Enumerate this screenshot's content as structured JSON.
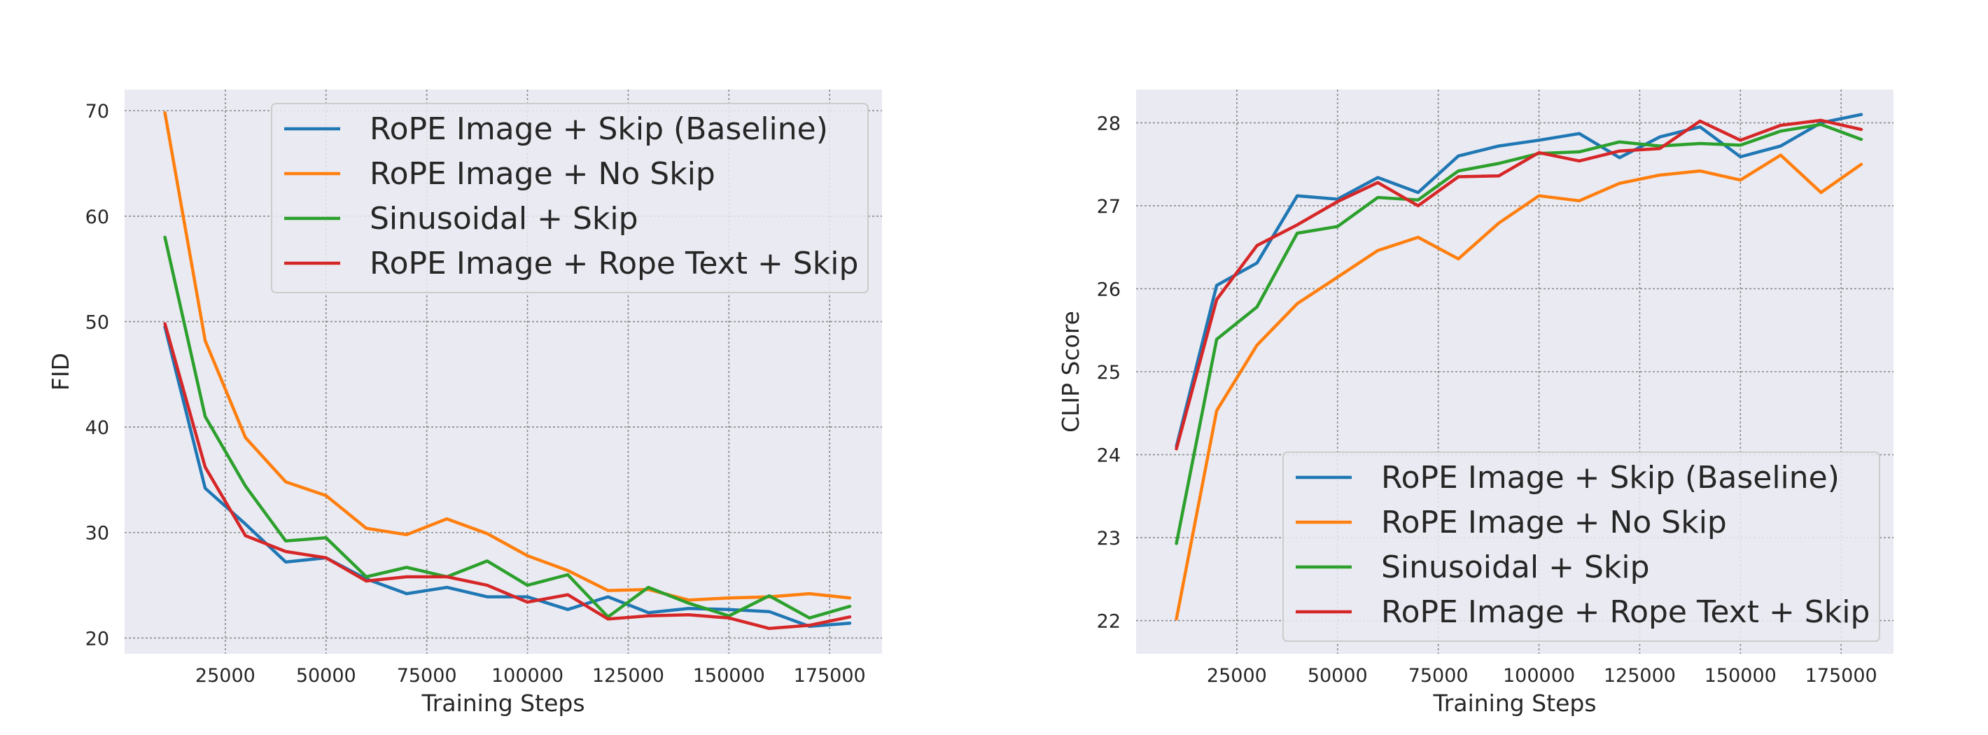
{
  "chart_data": [
    {
      "type": "line",
      "xlabel": "Training Steps",
      "ylabel": "FID",
      "xlim": [
        0,
        188000
      ],
      "ylim": [
        18.5,
        72
      ],
      "xticks": [
        25000,
        50000,
        75000,
        100000,
        125000,
        150000,
        175000
      ],
      "yticks": [
        20,
        30,
        40,
        50,
        60,
        70
      ],
      "grid": true,
      "legend_position": "upper-right",
      "x": [
        10000,
        20000,
        30000,
        40000,
        50000,
        60000,
        70000,
        80000,
        90000,
        100000,
        110000,
        120000,
        130000,
        140000,
        150000,
        160000,
        170000,
        180000
      ],
      "series": [
        {
          "name": "RoPE Image + Skip (Baseline)",
          "color": "#1f77b4",
          "values": [
            49.5,
            34.2,
            30.8,
            27.2,
            27.6,
            25.6,
            24.2,
            24.8,
            23.9,
            23.9,
            22.7,
            23.9,
            22.4,
            22.8,
            22.7,
            22.5,
            21.1,
            21.4
          ]
        },
        {
          "name": "RoPE Image + No Skip",
          "color": "#ff7f0e",
          "values": [
            69.8,
            48.2,
            39.0,
            34.8,
            33.5,
            30.4,
            29.8,
            31.3,
            29.9,
            27.8,
            26.4,
            24.5,
            24.6,
            23.6,
            23.8,
            23.9,
            24.2,
            23.8
          ]
        },
        {
          "name": "Sinusoidal + Skip",
          "color": "#2ca02c",
          "values": [
            58.0,
            41.0,
            34.4,
            29.2,
            29.5,
            25.8,
            26.7,
            25.8,
            27.3,
            25.0,
            26.0,
            22.0,
            24.8,
            23.3,
            22.1,
            24.0,
            21.9,
            23.0
          ]
        },
        {
          "name": "RoPE Image + Rope Text + Skip",
          "color": "#d62728",
          "values": [
            49.8,
            36.2,
            29.7,
            28.2,
            27.6,
            25.4,
            25.8,
            25.8,
            25.0,
            23.4,
            24.1,
            21.8,
            22.1,
            22.2,
            21.9,
            20.9,
            21.2,
            22.0
          ]
        }
      ]
    },
    {
      "type": "line",
      "xlabel": "Training Steps",
      "ylabel": "CLIP Score",
      "xlim": [
        0,
        188000
      ],
      "ylim": [
        21.6,
        28.4
      ],
      "xticks": [
        25000,
        50000,
        75000,
        100000,
        125000,
        150000,
        175000
      ],
      "yticks": [
        22,
        23,
        24,
        25,
        26,
        27,
        28
      ],
      "grid": true,
      "legend_position": "lower-right",
      "x": [
        10000,
        20000,
        30000,
        40000,
        50000,
        60000,
        70000,
        80000,
        90000,
        100000,
        110000,
        120000,
        130000,
        140000,
        150000,
        160000,
        170000,
        180000
      ],
      "series": [
        {
          "name": "RoPE Image + Skip (Baseline)",
          "color": "#1f77b4",
          "values": [
            24.1,
            26.04,
            26.31,
            27.12,
            27.08,
            27.34,
            27.16,
            27.6,
            27.72,
            27.79,
            27.87,
            27.58,
            27.83,
            27.95,
            27.59,
            27.72,
            28.0,
            28.1
          ]
        },
        {
          "name": "RoPE Image + No Skip",
          "color": "#ff7f0e",
          "values": [
            22.02,
            24.53,
            25.32,
            25.82,
            26.14,
            26.46,
            26.62,
            26.36,
            26.79,
            27.12,
            27.06,
            27.27,
            27.37,
            27.42,
            27.31,
            27.61,
            27.16,
            27.5
          ]
        },
        {
          "name": "Sinusoidal + Skip",
          "color": "#2ca02c",
          "values": [
            22.93,
            25.39,
            25.78,
            26.67,
            26.75,
            27.1,
            27.07,
            27.42,
            27.51,
            27.63,
            27.65,
            27.77,
            27.72,
            27.75,
            27.73,
            27.9,
            27.98,
            27.8
          ]
        },
        {
          "name": "RoPE Image + Rope Text + Skip",
          "color": "#d62728",
          "values": [
            24.07,
            25.87,
            26.52,
            26.77,
            27.05,
            27.28,
            27.0,
            27.35,
            27.36,
            27.64,
            27.54,
            27.66,
            27.69,
            28.02,
            27.79,
            27.97,
            28.03,
            27.92
          ]
        }
      ]
    }
  ]
}
